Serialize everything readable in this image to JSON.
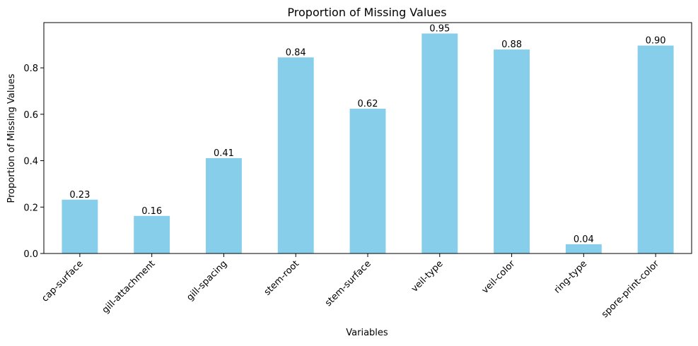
{
  "chart_data": {
    "type": "bar",
    "title": "Proportion of Missing Values",
    "xlabel": "Variables",
    "ylabel": "Proportion of Missing Values",
    "categories": [
      "cap-surface",
      "gill-attachment",
      "gill-spacing",
      "stem-root",
      "stem-surface",
      "veil-type",
      "veil-color",
      "ring-type",
      "spore-print-color"
    ],
    "values": [
      0.232,
      0.162,
      0.411,
      0.845,
      0.624,
      0.948,
      0.879,
      0.04,
      0.896
    ],
    "value_labels": [
      "0.23",
      "0.16",
      "0.41",
      "0.84",
      "0.62",
      "0.95",
      "0.88",
      "0.04",
      "0.90"
    ],
    "ylim": [
      0,
      0.995
    ],
    "yticks": [
      0.0,
      0.2,
      0.4,
      0.6,
      0.8
    ],
    "ytick_labels": [
      "0.0",
      "0.2",
      "0.4",
      "0.6",
      "0.8"
    ],
    "bar_color": "#87CEEB",
    "grid": false,
    "legend": null
  }
}
